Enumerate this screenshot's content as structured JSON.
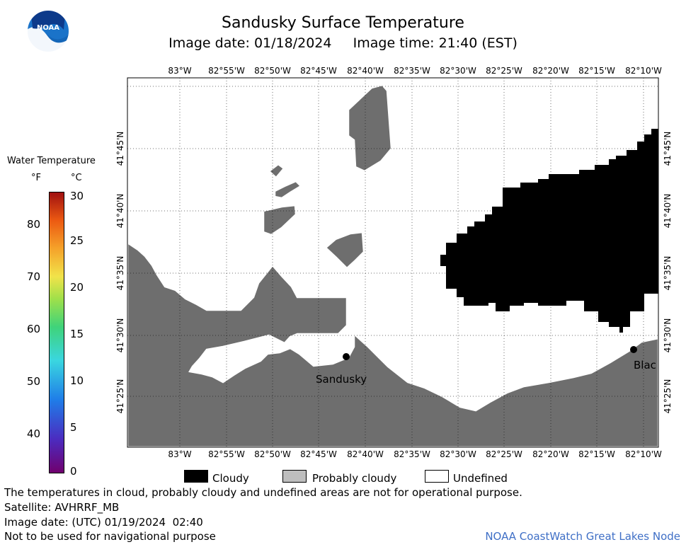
{
  "header": {
    "title": "Sandusky Surface Temperature",
    "date_label": "Image date:",
    "date_value": "01/18/2024",
    "time_label": "Image time:",
    "time_value": "21:40 (EST)"
  },
  "logo": {
    "text": "NOAA"
  },
  "colorbar": {
    "title": "Water Temperature",
    "unit_f": "°F",
    "unit_c": "°C",
    "f_ticks": [
      "80",
      "70",
      "60",
      "50",
      "40"
    ],
    "c_ticks": [
      "30",
      "25",
      "20",
      "15",
      "10",
      "5",
      "0"
    ]
  },
  "map": {
    "lon_labels": [
      "83°W",
      "82°55'W",
      "82°50'W",
      "82°45'W",
      "82°40'W",
      "82°35'W",
      "82°30'W",
      "82°25'W",
      "82°20'W",
      "82°15'W",
      "82°10'W"
    ],
    "lat_labels": [
      "41°45'N",
      "41°40'N",
      "41°35'N",
      "41°30'N",
      "41°25'N"
    ],
    "cities": {
      "sandusky": "Sandusky",
      "blac": "Blac"
    }
  },
  "legend": {
    "cloudy": "Cloudy",
    "probably_cloudy": "Probably cloudy",
    "undefined": "Undefined",
    "cloudy_color": "#000000",
    "probably_cloudy_color": "#bebebe",
    "undefined_color": "#ffffff",
    "land_color": "#6e6e6e"
  },
  "footer": {
    "disclaimer": "The temperatures in cloud, probably cloudy and undefined areas are not for operational purpose.",
    "satellite": "Satellite: AVHRRF_MB",
    "utc_date": "Image date: (UTC) 01/19/2024  02:40",
    "navigation": "Not to be used for navigational purpose",
    "credit": "NOAA CoastWatch Great Lakes Node"
  }
}
